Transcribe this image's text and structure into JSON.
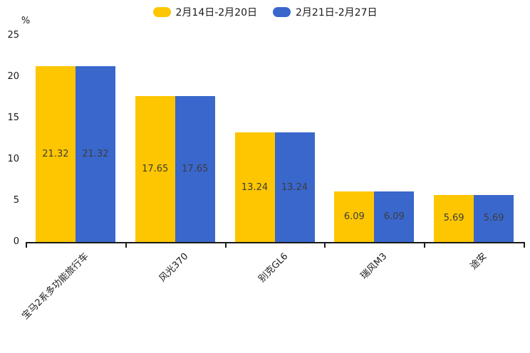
{
  "chart_data": {
    "type": "bar",
    "title": "",
    "xlabel": "",
    "ylabel": "%",
    "categories": [
      "宝马2系多功能旅行车",
      "风光370",
      "别克GL6",
      "瑞风M3",
      "途安"
    ],
    "series": [
      {
        "name": "2月14日-2月20日",
        "color": "#FDC600",
        "values": [
          21.32,
          17.65,
          13.24,
          6.09,
          5.69
        ]
      },
      {
        "name": "2月21日-2月27日",
        "color": "#3A67CC",
        "values": [
          21.32,
          17.65,
          13.24,
          6.09,
          5.69
        ]
      }
    ],
    "ylim": [
      0,
      25
    ],
    "yticks": [
      0,
      5,
      10,
      15,
      20,
      25
    ],
    "grid": false,
    "legend_position": "top-center",
    "value_labels_shown": true,
    "value_label_color": "#3d3d3d",
    "axis_color": "#1a1a1a",
    "background": "#ffffff"
  }
}
